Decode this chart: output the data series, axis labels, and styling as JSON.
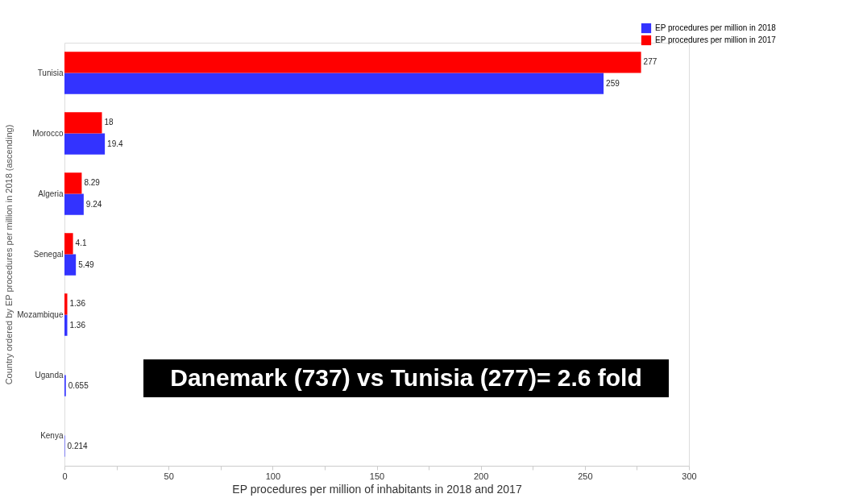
{
  "chart_data": {
    "type": "bar",
    "orientation": "horizontal",
    "xlabel": "EP procedures per million of inhabitants in 2018 and 2017",
    "ylabel": "Country ordered by EP procedures per million in 2018 (ascending)",
    "categories": [
      "Tunisia",
      "Morocco",
      "Algeria",
      "Senegal",
      "Mozambique",
      "Uganda",
      "Kenya"
    ],
    "series": [
      {
        "name": "EP procedures per million in 2018",
        "color": "#3333ff",
        "values": [
          259,
          19.4,
          9.24,
          5.49,
          1.36,
          0.655,
          0.214
        ]
      },
      {
        "name": "EP procedures per million in 2017",
        "color": "#ff0000",
        "values": [
          277,
          18,
          8.29,
          4.1,
          1.36,
          null,
          null
        ]
      }
    ],
    "xlim": [
      0,
      300
    ],
    "xticks": [
      0,
      {
        "value": 25,
        "label": null
      },
      50,
      {
        "value": 75,
        "label": null
      },
      100,
      {
        "value": 125,
        "label": null
      },
      150,
      {
        "value": 175,
        "label": null
      },
      200,
      {
        "value": 225,
        "label": null
      },
      250,
      {
        "value": 275,
        "label": null
      },
      300
    ],
    "data_labels": true,
    "grid": false,
    "legend": "top right",
    "annotations": [
      "Danemark (737) vs Tunisia (277)= 2.6 fold"
    ]
  }
}
